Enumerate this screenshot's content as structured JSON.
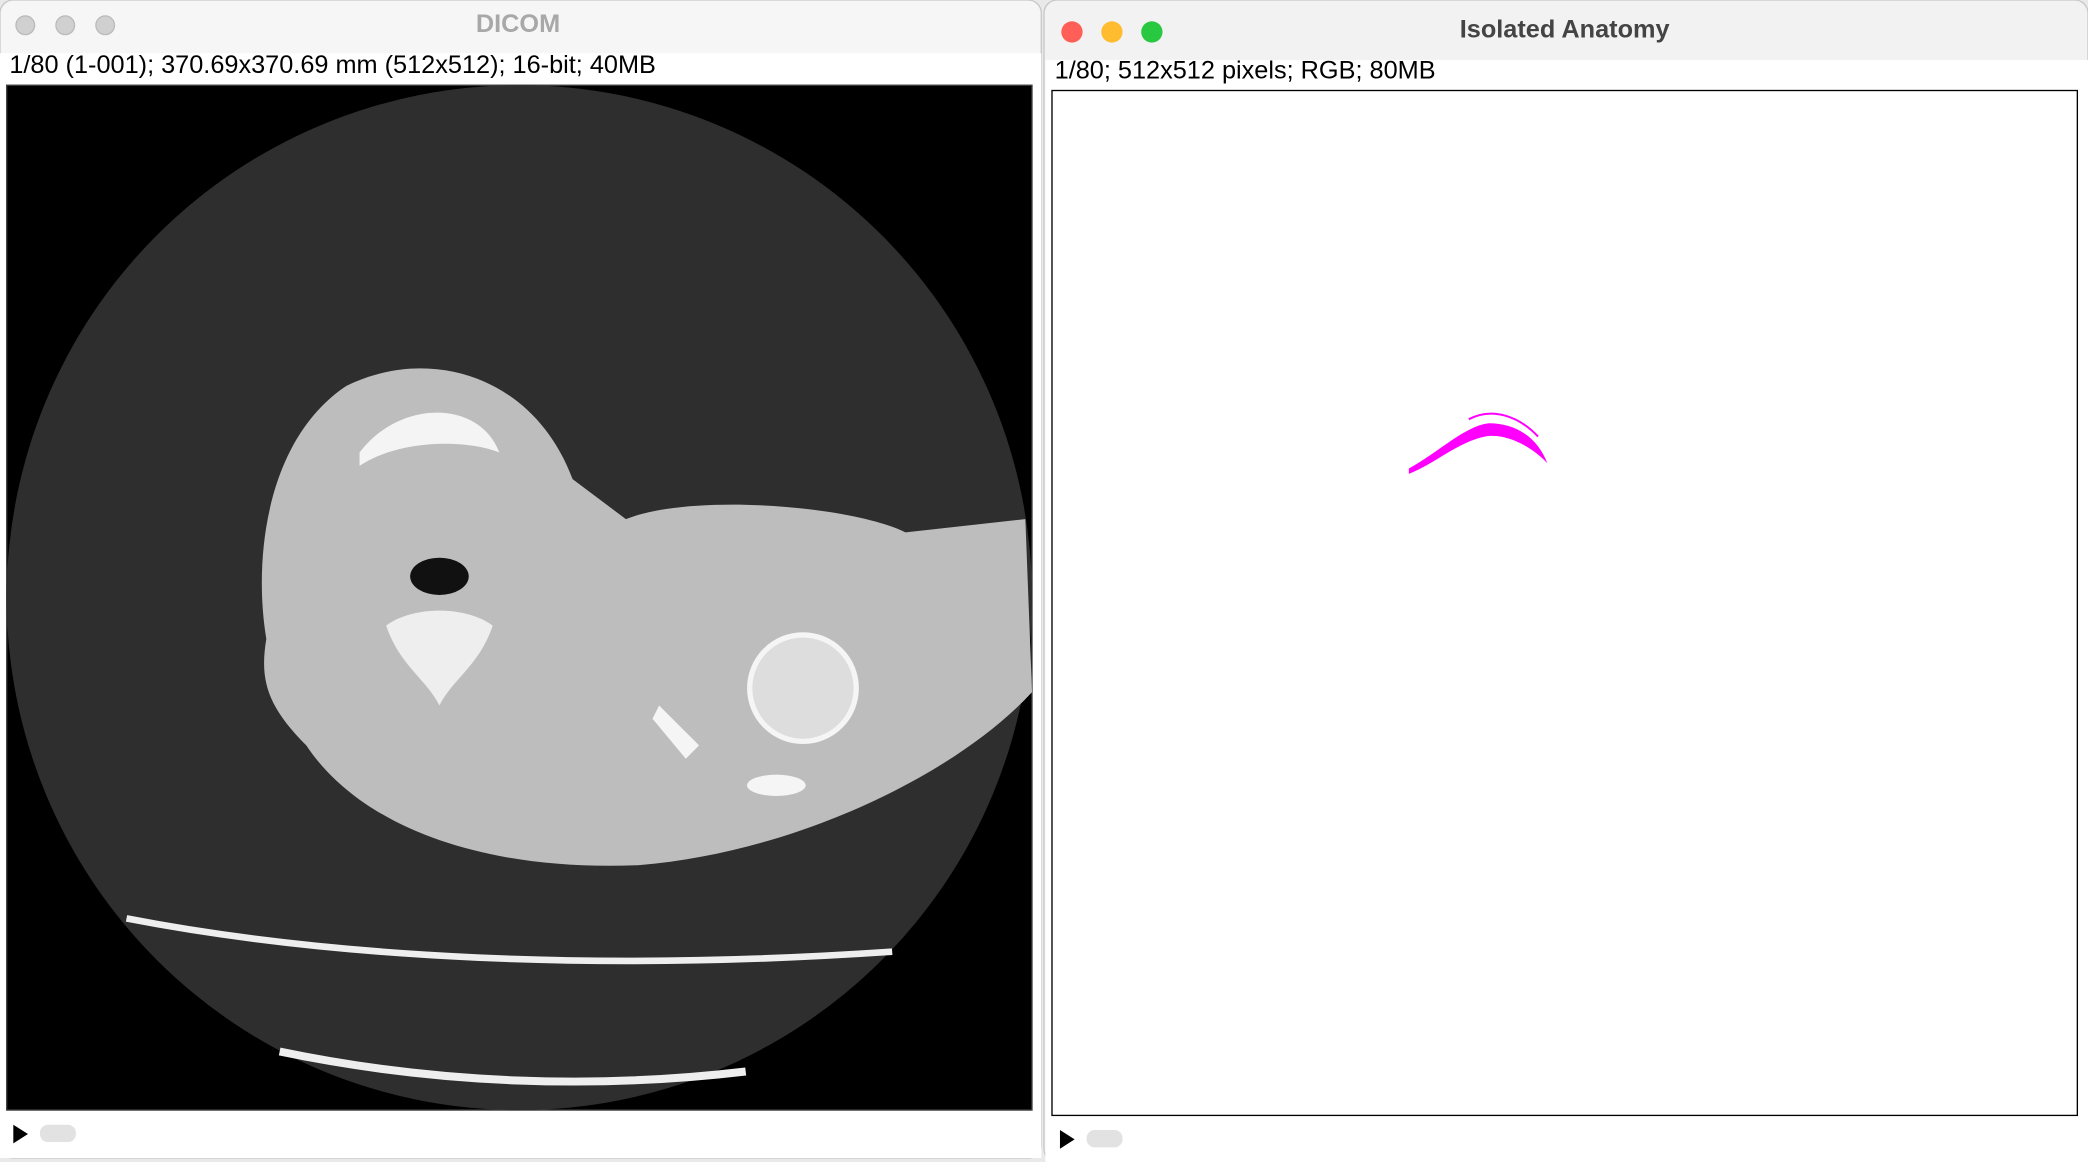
{
  "windows": [
    {
      "title": "DICOM",
      "info": "1/80 (1-001); 370.69x370.69 mm (512x512); 16-bit; 40MB"
    },
    {
      "title": "Isolated Anatomy",
      "info": "1/80; 512x512 pixels; RGB; 80MB"
    }
  ]
}
